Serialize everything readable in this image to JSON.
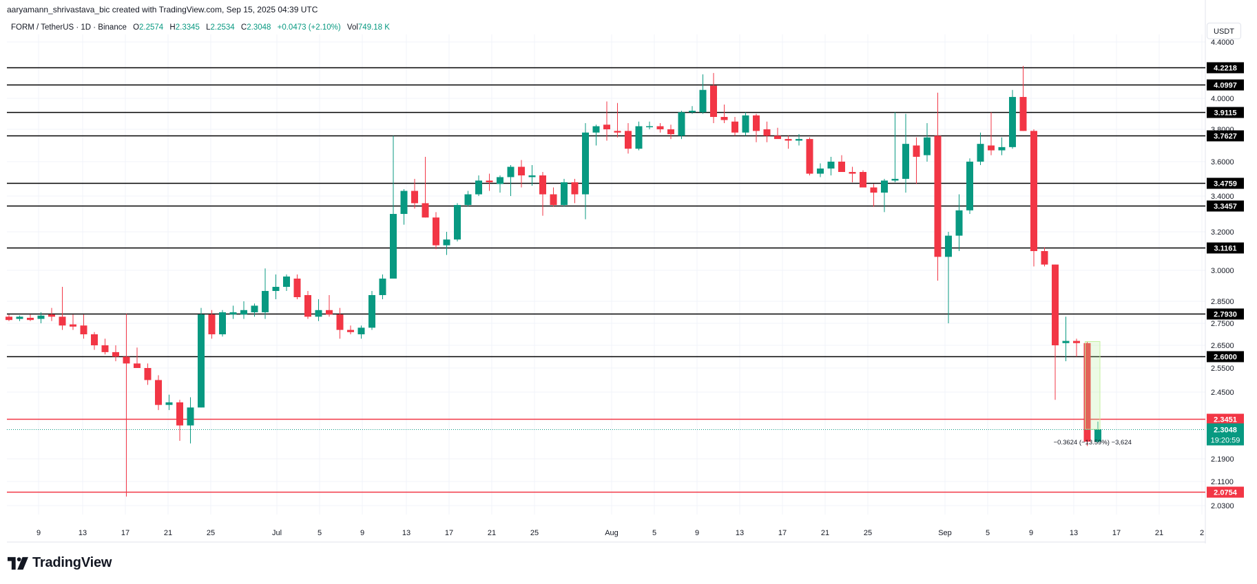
{
  "header": {
    "author_line": "aaryamann_shrivastava_bic created with TradingView.com, Sep 15, 2025 04:39 UTC",
    "symbol": "FORM / TetherUS · 1D · Binance",
    "ohlc": {
      "o_label": "O",
      "o": "2.2574",
      "h_label": "H",
      "h": "2.3345",
      "l_label": "L",
      "l": "2.2534",
      "c_label": "C",
      "c": "2.3048",
      "change": "+0.0473 (+2.10%)",
      "vol_label": "Vol",
      "vol": "749.18 K"
    }
  },
  "currency_button": "USDT",
  "footer": {
    "brand": "TradingView"
  },
  "colors": {
    "up": "#089981",
    "down": "#f23645",
    "level": "#000000",
    "red_level": "#f23645",
    "grid": "#f0f3fa"
  },
  "chart_data": {
    "type": "candlestick",
    "title": "FORM / TetherUS · 1D · Binance",
    "ylim": [
      1.98,
      4.48
    ],
    "y_ticks": [
      "4.4000",
      "4.0000",
      "3.8000",
      "3.6000",
      "3.4000",
      "3.2000",
      "3.0000",
      "2.8500",
      "2.7500",
      "2.6500",
      "2.5500",
      "2.4500",
      "2.1900",
      "2.1100",
      "2.0300"
    ],
    "x_ticks": [
      "9",
      "13",
      "17",
      "21",
      "25",
      "Jul",
      "5",
      "9",
      "13",
      "17",
      "21",
      "25",
      "Aug",
      "5",
      "9",
      "13",
      "17",
      "21",
      "25",
      "Sep",
      "5",
      "9",
      "13",
      "17",
      "21",
      "2"
    ],
    "support_resistance_levels": [
      {
        "value": 4.2218,
        "label": "4.2218",
        "color": "black"
      },
      {
        "value": 4.0997,
        "label": "4.0997",
        "color": "black"
      },
      {
        "value": 3.9115,
        "label": "3.9115",
        "color": "black"
      },
      {
        "value": 3.7627,
        "label": "3.7627",
        "color": "black"
      },
      {
        "value": 3.4759,
        "label": "3.4759",
        "color": "black"
      },
      {
        "value": 3.3457,
        "label": "3.3457",
        "color": "black"
      },
      {
        "value": 3.1161,
        "label": "3.1161",
        "color": "black"
      },
      {
        "value": 2.793,
        "label": "2.7930",
        "color": "black"
      },
      {
        "value": 2.6,
        "label": "2.6000",
        "color": "black"
      },
      {
        "value": 2.3451,
        "label": "2.3451",
        "color": "red"
      },
      {
        "value": 2.0754,
        "label": "2.0754",
        "color": "red"
      }
    ],
    "last_price": {
      "value": 2.3048,
      "label": "2.3048",
      "countdown": "19:20:59"
    },
    "measure": {
      "text": "−0.3624 (−13.59%) −3,624",
      "from": 2.6672,
      "to": 2.3048
    },
    "candles": [
      {
        "o": 2.78,
        "h": 2.79,
        "l": 2.76,
        "c": 2.765
      },
      {
        "o": 2.77,
        "h": 2.785,
        "l": 2.76,
        "c": 2.78
      },
      {
        "o": 2.775,
        "h": 2.79,
        "l": 2.76,
        "c": 2.765
      },
      {
        "o": 2.77,
        "h": 2.8,
        "l": 2.75,
        "c": 2.785
      },
      {
        "o": 2.79,
        "h": 2.82,
        "l": 2.76,
        "c": 2.78
      },
      {
        "o": 2.78,
        "h": 2.92,
        "l": 2.72,
        "c": 2.74
      },
      {
        "o": 2.745,
        "h": 2.79,
        "l": 2.72,
        "c": 2.735
      },
      {
        "o": 2.74,
        "h": 2.79,
        "l": 2.68,
        "c": 2.7
      },
      {
        "o": 2.7,
        "h": 2.71,
        "l": 2.63,
        "c": 2.65
      },
      {
        "o": 2.65,
        "h": 2.68,
        "l": 2.61,
        "c": 2.62
      },
      {
        "o": 2.62,
        "h": 2.65,
        "l": 2.58,
        "c": 2.6
      },
      {
        "o": 2.6,
        "h": 2.793,
        "l": 2.06,
        "c": 2.57
      },
      {
        "o": 2.57,
        "h": 2.64,
        "l": 2.55,
        "c": 2.55
      },
      {
        "o": 2.55,
        "h": 2.57,
        "l": 2.48,
        "c": 2.5
      },
      {
        "o": 2.5,
        "h": 2.52,
        "l": 2.38,
        "c": 2.4
      },
      {
        "o": 2.4,
        "h": 2.44,
        "l": 2.38,
        "c": 2.41
      },
      {
        "o": 2.41,
        "h": 2.42,
        "l": 2.26,
        "c": 2.32
      },
      {
        "o": 2.32,
        "h": 2.43,
        "l": 2.25,
        "c": 2.39
      },
      {
        "o": 2.39,
        "h": 2.82,
        "l": 2.39,
        "c": 2.79
      },
      {
        "o": 2.79,
        "h": 2.81,
        "l": 2.68,
        "c": 2.7
      },
      {
        "o": 2.7,
        "h": 2.81,
        "l": 2.69,
        "c": 2.8
      },
      {
        "o": 2.79,
        "h": 2.83,
        "l": 2.77,
        "c": 2.8
      },
      {
        "o": 2.79,
        "h": 2.85,
        "l": 2.77,
        "c": 2.81
      },
      {
        "o": 2.8,
        "h": 2.84,
        "l": 2.78,
        "c": 2.83
      },
      {
        "o": 2.8,
        "h": 3.01,
        "l": 2.77,
        "c": 2.9
      },
      {
        "o": 2.9,
        "h": 2.98,
        "l": 2.86,
        "c": 2.92
      },
      {
        "o": 2.92,
        "h": 2.98,
        "l": 2.9,
        "c": 2.97
      },
      {
        "o": 2.96,
        "h": 2.98,
        "l": 2.86,
        "c": 2.87
      },
      {
        "o": 2.88,
        "h": 2.9,
        "l": 2.77,
        "c": 2.78
      },
      {
        "o": 2.78,
        "h": 2.86,
        "l": 2.76,
        "c": 2.81
      },
      {
        "o": 2.81,
        "h": 2.88,
        "l": 2.78,
        "c": 2.79
      },
      {
        "o": 2.79,
        "h": 2.82,
        "l": 2.68,
        "c": 2.72
      },
      {
        "o": 2.72,
        "h": 2.74,
        "l": 2.7,
        "c": 2.71
      },
      {
        "o": 2.7,
        "h": 2.74,
        "l": 2.68,
        "c": 2.73
      },
      {
        "o": 2.73,
        "h": 2.9,
        "l": 2.72,
        "c": 2.88
      },
      {
        "o": 2.88,
        "h": 2.98,
        "l": 2.86,
        "c": 2.96
      },
      {
        "o": 2.96,
        "h": 3.76,
        "l": 2.96,
        "c": 3.3
      },
      {
        "o": 3.3,
        "h": 3.44,
        "l": 3.24,
        "c": 3.43
      },
      {
        "o": 3.43,
        "h": 3.5,
        "l": 3.33,
        "c": 3.36
      },
      {
        "o": 3.36,
        "h": 3.63,
        "l": 3.28,
        "c": 3.28
      },
      {
        "o": 3.28,
        "h": 3.31,
        "l": 3.11,
        "c": 3.13
      },
      {
        "o": 3.13,
        "h": 3.2,
        "l": 3.08,
        "c": 3.16
      },
      {
        "o": 3.16,
        "h": 3.36,
        "l": 3.15,
        "c": 3.35
      },
      {
        "o": 3.35,
        "h": 3.43,
        "l": 3.34,
        "c": 3.41
      },
      {
        "o": 3.41,
        "h": 3.52,
        "l": 3.4,
        "c": 3.49
      },
      {
        "o": 3.49,
        "h": 3.53,
        "l": 3.43,
        "c": 3.48
      },
      {
        "o": 3.47,
        "h": 3.52,
        "l": 3.42,
        "c": 3.51
      },
      {
        "o": 3.51,
        "h": 3.58,
        "l": 3.4,
        "c": 3.57
      },
      {
        "o": 3.57,
        "h": 3.61,
        "l": 3.45,
        "c": 3.52
      },
      {
        "o": 3.51,
        "h": 3.58,
        "l": 3.46,
        "c": 3.52
      },
      {
        "o": 3.52,
        "h": 3.54,
        "l": 3.29,
        "c": 3.41
      },
      {
        "o": 3.41,
        "h": 3.45,
        "l": 3.34,
        "c": 3.35
      },
      {
        "o": 3.35,
        "h": 3.5,
        "l": 3.34,
        "c": 3.48
      },
      {
        "o": 3.48,
        "h": 3.5,
        "l": 3.36,
        "c": 3.41
      },
      {
        "o": 3.41,
        "h": 3.84,
        "l": 3.27,
        "c": 3.78
      },
      {
        "o": 3.78,
        "h": 3.83,
        "l": 3.7,
        "c": 3.82
      },
      {
        "o": 3.83,
        "h": 3.98,
        "l": 3.73,
        "c": 3.8
      },
      {
        "o": 3.79,
        "h": 3.97,
        "l": 3.75,
        "c": 3.78
      },
      {
        "o": 3.79,
        "h": 3.84,
        "l": 3.65,
        "c": 3.68
      },
      {
        "o": 3.68,
        "h": 3.85,
        "l": 3.67,
        "c": 3.82
      },
      {
        "o": 3.82,
        "h": 3.85,
        "l": 3.8,
        "c": 3.82
      },
      {
        "o": 3.82,
        "h": 3.84,
        "l": 3.78,
        "c": 3.8
      },
      {
        "o": 3.8,
        "h": 3.83,
        "l": 3.74,
        "c": 3.77
      },
      {
        "o": 3.76,
        "h": 3.92,
        "l": 3.74,
        "c": 3.91
      },
      {
        "o": 3.91,
        "h": 3.95,
        "l": 3.9,
        "c": 3.92
      },
      {
        "o": 3.91,
        "h": 4.17,
        "l": 3.9,
        "c": 4.06
      },
      {
        "o": 4.09,
        "h": 4.18,
        "l": 3.84,
        "c": 3.88
      },
      {
        "o": 3.88,
        "h": 3.96,
        "l": 3.84,
        "c": 3.86
      },
      {
        "o": 3.85,
        "h": 3.88,
        "l": 3.76,
        "c": 3.78
      },
      {
        "o": 3.78,
        "h": 3.91,
        "l": 3.76,
        "c": 3.89
      },
      {
        "o": 3.89,
        "h": 3.9,
        "l": 3.72,
        "c": 3.79
      },
      {
        "o": 3.8,
        "h": 3.85,
        "l": 3.72,
        "c": 3.76
      },
      {
        "o": 3.76,
        "h": 3.81,
        "l": 3.75,
        "c": 3.74
      },
      {
        "o": 3.74,
        "h": 3.76,
        "l": 3.68,
        "c": 3.73
      },
      {
        "o": 3.73,
        "h": 3.77,
        "l": 3.7,
        "c": 3.74
      },
      {
        "o": 3.74,
        "h": 3.75,
        "l": 3.52,
        "c": 3.53
      },
      {
        "o": 3.53,
        "h": 3.59,
        "l": 3.51,
        "c": 3.56
      },
      {
        "o": 3.56,
        "h": 3.63,
        "l": 3.52,
        "c": 3.6
      },
      {
        "o": 3.6,
        "h": 3.64,
        "l": 3.54,
        "c": 3.54
      },
      {
        "o": 3.54,
        "h": 3.57,
        "l": 3.48,
        "c": 3.53
      },
      {
        "o": 3.54,
        "h": 3.55,
        "l": 3.46,
        "c": 3.45
      },
      {
        "o": 3.45,
        "h": 3.47,
        "l": 3.34,
        "c": 3.42
      },
      {
        "o": 3.42,
        "h": 3.5,
        "l": 3.31,
        "c": 3.49
      },
      {
        "o": 3.49,
        "h": 3.91,
        "l": 3.48,
        "c": 3.5
      },
      {
        "o": 3.5,
        "h": 3.9,
        "l": 3.42,
        "c": 3.71
      },
      {
        "o": 3.7,
        "h": 3.75,
        "l": 3.47,
        "c": 3.63
      },
      {
        "o": 3.64,
        "h": 3.84,
        "l": 3.6,
        "c": 3.75
      },
      {
        "o": 3.76,
        "h": 4.04,
        "l": 2.95,
        "c": 3.07
      },
      {
        "o": 3.07,
        "h": 3.2,
        "l": 2.75,
        "c": 3.18
      },
      {
        "o": 3.18,
        "h": 3.41,
        "l": 3.1,
        "c": 3.32
      },
      {
        "o": 3.32,
        "h": 3.62,
        "l": 3.3,
        "c": 3.6
      },
      {
        "o": 3.6,
        "h": 3.78,
        "l": 3.58,
        "c": 3.71
      },
      {
        "o": 3.7,
        "h": 3.91,
        "l": 3.64,
        "c": 3.67
      },
      {
        "o": 3.67,
        "h": 3.75,
        "l": 3.64,
        "c": 3.69
      },
      {
        "o": 3.69,
        "h": 4.06,
        "l": 3.68,
        "c": 4.01
      },
      {
        "o": 4.01,
        "h": 4.23,
        "l": 3.79,
        "c": 3.79
      },
      {
        "o": 3.79,
        "h": 3.8,
        "l": 3.02,
        "c": 3.1
      },
      {
        "o": 3.1,
        "h": 3.12,
        "l": 3.02,
        "c": 3.03
      },
      {
        "o": 3.03,
        "h": 3.03,
        "l": 2.42,
        "c": 2.65
      },
      {
        "o": 2.66,
        "h": 2.78,
        "l": 2.58,
        "c": 2.67
      },
      {
        "o": 2.67,
        "h": 2.68,
        "l": 2.6,
        "c": 2.66
      },
      {
        "o": 2.66,
        "h": 2.667,
        "l": 2.24,
        "c": 2.257
      },
      {
        "o": 2.257,
        "h": 2.335,
        "l": 2.253,
        "c": 2.305
      }
    ]
  }
}
